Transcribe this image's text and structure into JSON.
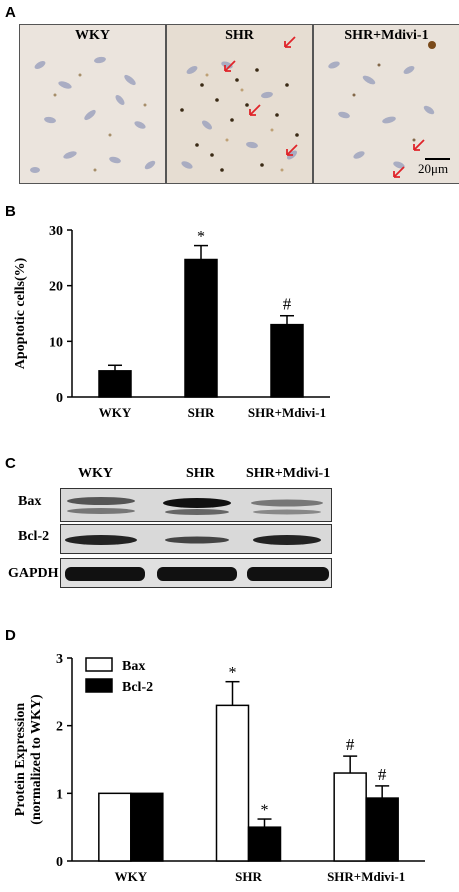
{
  "panels": {
    "a": "A",
    "b": "B",
    "c": "C",
    "d": "D"
  },
  "micrographs": [
    {
      "label": "WKY"
    },
    {
      "label": "SHR"
    },
    {
      "label": "SHR+Mdivi-1"
    }
  ],
  "scale_bar_label": "20μm",
  "blot": {
    "columns": [
      "WKY",
      "SHR",
      "SHR+Mdivi-1"
    ],
    "rows": [
      "Bax",
      "Bcl-2",
      "GAPDH"
    ]
  },
  "chart_data": [
    {
      "type": "bar",
      "ylabel": "Apoptotic cells(%)",
      "categories": [
        "WKY",
        "SHR",
        "SHR+Mdivi-1"
      ],
      "series": [
        {
          "values": [
            4.7,
            24.7,
            13.0
          ],
          "errors": [
            1.0,
            2.5,
            1.6
          ]
        }
      ],
      "annotations": [
        "",
        "*",
        "#"
      ],
      "ylim": [
        0,
        30
      ],
      "yticks": [
        0,
        10,
        20,
        30
      ],
      "colors": [
        "#000000"
      ]
    },
    {
      "type": "bar",
      "ylabel": "Protein Expression\n(normalized to WKY)",
      "categories": [
        "WKY",
        "SHR",
        "SHR+Mdivi-1"
      ],
      "series": [
        {
          "name": "Bax",
          "values": [
            1.0,
            2.3,
            1.3
          ],
          "errors": [
            0.0,
            0.35,
            0.25
          ],
          "annotations": [
            "",
            "*",
            "#"
          ],
          "fill": "#ffffff"
        },
        {
          "name": "Bcl-2",
          "values": [
            1.0,
            0.5,
            0.93
          ],
          "errors": [
            0.0,
            0.12,
            0.18
          ],
          "annotations": [
            "",
            "*",
            "#"
          ],
          "fill": "#000000"
        }
      ],
      "ylim": [
        0,
        3
      ],
      "yticks": [
        0,
        1,
        2,
        3
      ],
      "legend": "top-left"
    }
  ]
}
